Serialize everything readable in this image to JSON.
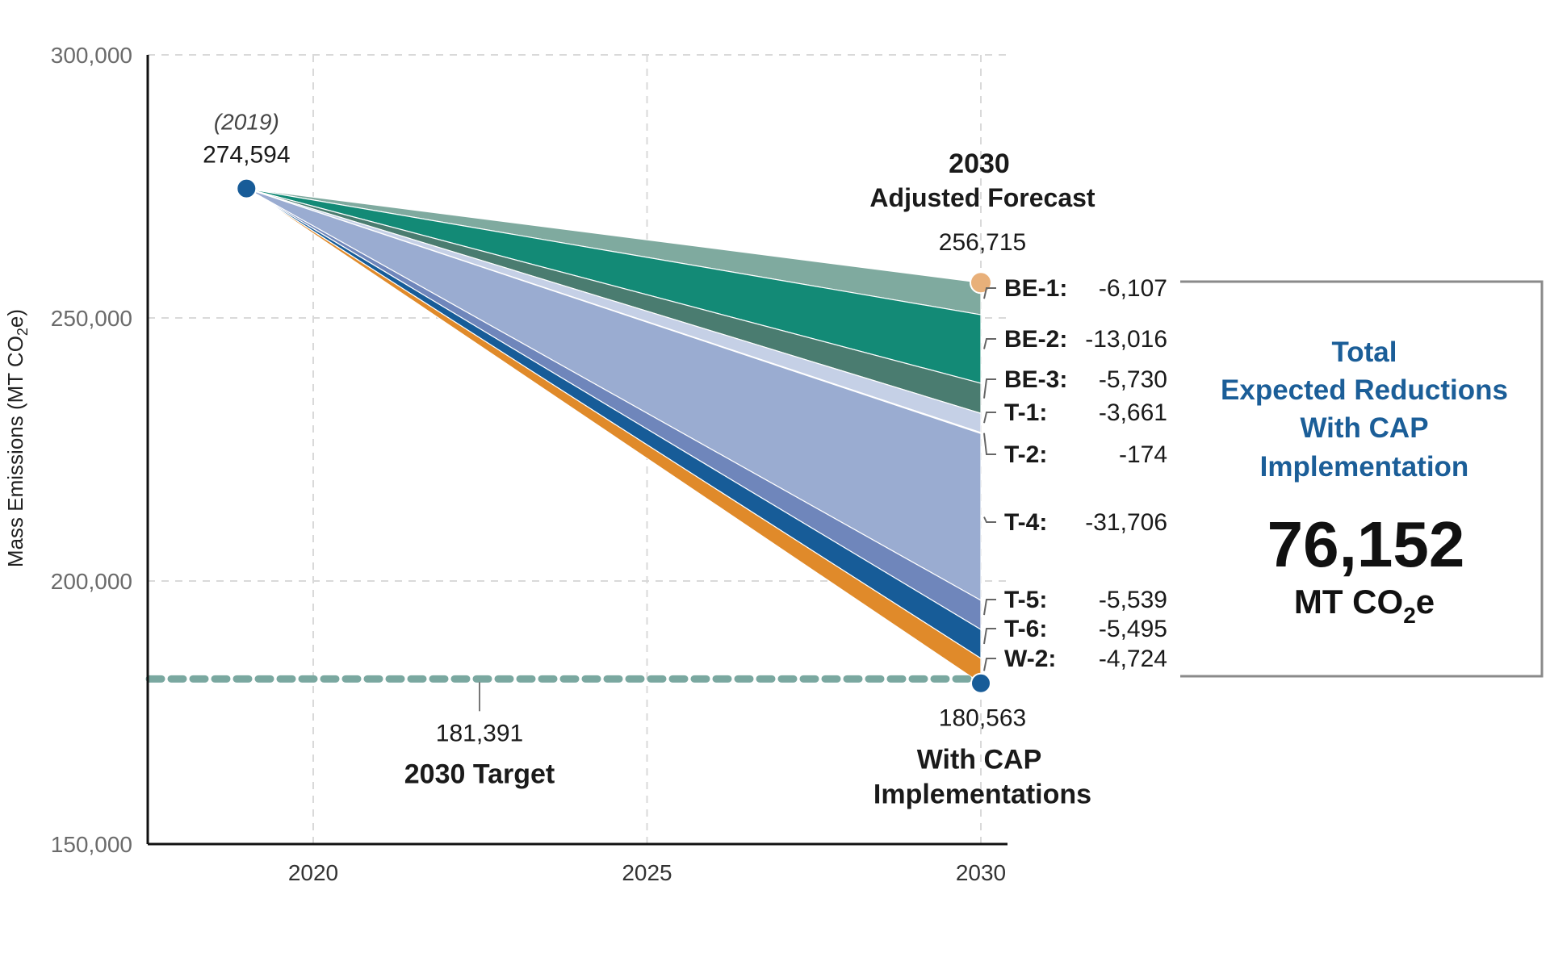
{
  "chart_data": {
    "type": "area",
    "title": "",
    "xlabel": "",
    "ylabel": "Mass Emissions (MT CO2e)",
    "ylabel_parts": {
      "before": "Mass Emissions (MT CO",
      "sub": "2",
      "after": "e)"
    },
    "xlim": [
      2017.5,
      2030.4
    ],
    "ylim": [
      150000,
      300000
    ],
    "x_ticks": [
      2020,
      2025,
      2030
    ],
    "x_tick_labels": [
      "2020",
      "2025",
      "2030"
    ],
    "y_ticks": [
      150000,
      200000,
      250000,
      300000
    ],
    "y_tick_labels": [
      "150,000",
      "200,000",
      "250,000",
      "300,000"
    ],
    "grid": true,
    "baseline": {
      "year": 2019,
      "value": 274594,
      "year_label": "(2019)",
      "value_label": "274,594"
    },
    "forecast": {
      "year": 2030,
      "value": 256715,
      "title": "2030",
      "subtitle": "Adjusted Forecast",
      "value_label": "256,715"
    },
    "with_cap": {
      "year": 2030,
      "value": 180563,
      "value_label": "180,563",
      "label_line1": "With CAP",
      "label_line2": "Implementations"
    },
    "target": {
      "value": 181391,
      "value_label": "181,391",
      "label": "2030 Target",
      "color": "#7aa8a0"
    },
    "series": [
      {
        "name": "BE-1",
        "label": "BE-1:",
        "value": -6107,
        "value_label": "-6,107",
        "color": "#7faa9f"
      },
      {
        "name": "BE-2",
        "label": "BE-2:",
        "value": -13016,
        "value_label": "-13,016",
        "color": "#138a76"
      },
      {
        "name": "BE-3",
        "label": "BE-3:",
        "value": -5730,
        "value_label": "-5,730",
        "color": "#4a7c70"
      },
      {
        "name": "T-1",
        "label": "T-1:",
        "value": -3661,
        "value_label": "-3,661",
        "color": "#c5d0e6"
      },
      {
        "name": "T-2",
        "label": "T-2:",
        "value": -174,
        "value_label": "-174",
        "color": "#b3c0dd"
      },
      {
        "name": "T-4",
        "label": "T-4:",
        "value": -31706,
        "value_label": "-31,706",
        "color": "#9aacd1"
      },
      {
        "name": "T-5",
        "label": "T-5:",
        "value": -5539,
        "value_label": "-5,539",
        "color": "#6f86bb"
      },
      {
        "name": "T-6",
        "label": "T-6:",
        "value": -5495,
        "value_label": "-5,495",
        "color": "#175c98"
      },
      {
        "name": "W-2",
        "label": "W-2:",
        "value": -4724,
        "value_label": "-4,724",
        "color": "#e08a2a"
      }
    ],
    "total_box": {
      "title_lines": [
        "Total",
        "Expected Reductions",
        "With CAP",
        "Implementation"
      ],
      "value": 76152,
      "value_label": "76,152",
      "unit_before": "MT CO",
      "unit_sub": "2",
      "unit_after": "e",
      "title_color": "#1b5e98"
    },
    "colors": {
      "baseline_dot": "#185c98",
      "forecast_dot": "#e8b07a",
      "with_cap_dot": "#185c98",
      "axis": "#111111",
      "grid": "#d9d9d9",
      "tick_text": "#6b6b6b",
      "label_text": "#1a1a1a"
    }
  }
}
